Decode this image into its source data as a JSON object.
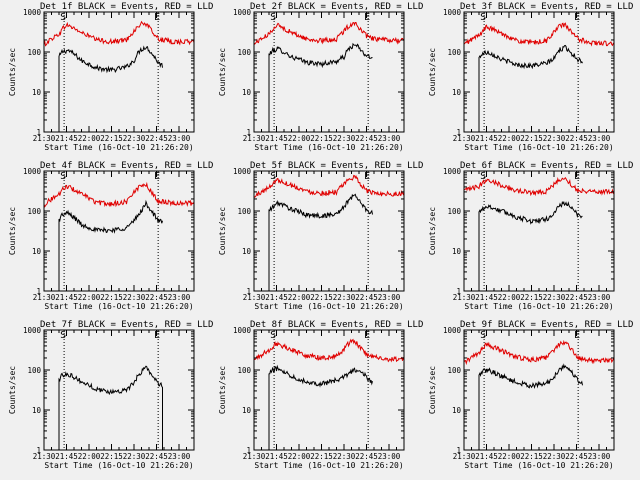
{
  "chart_data": {
    "type": "line",
    "xlabel": "Start Time (16-Oct-10 21:26:20)",
    "ylabel": "Counts/sec",
    "x_ticks": [
      "21:30",
      "21:45",
      "22:00",
      "22:15",
      "22:30",
      "22:45",
      "23:00"
    ],
    "x_tick_minutes": [
      0,
      15,
      30,
      45,
      60,
      75,
      90
    ],
    "x_range_minutes": [
      0,
      100
    ],
    "y_scale": "log",
    "y_range": [
      1,
      1000
    ],
    "y_ticks": [
      "1",
      "10",
      "100",
      "1000"
    ],
    "y_tick_values": [
      1,
      10,
      100,
      1000
    ],
    "grid": false,
    "colors": {
      "events": "#000000",
      "lld": "#e00000",
      "background": "#f0f0f0"
    },
    "vlines_minutes": [
      13.4,
      76.1
    ],
    "markers": [
      {
        "text": "S",
        "x_minutes": 13.4
      },
      {
        "text": "E",
        "x_minutes": 76.1
      }
    ],
    "panels": [
      {
        "title": "Det 1f BLACK = Events, RED = LLD",
        "series": [
          {
            "name": "BLACK = Events",
            "x": [
              10,
              12,
              16,
              25,
              35,
              45,
              55,
              60,
              64,
              68,
              72,
              76,
              79
            ],
            "y": [
              75,
              100,
              110,
              60,
              40,
              35,
              42,
              60,
              110,
              135,
              90,
              55,
              45
            ]
          },
          {
            "name": "RED = LLD",
            "x": [
              0,
              10,
              15,
              25,
              35,
              45,
              55,
              60,
              64,
              67,
              72,
              76,
              85,
              100
            ],
            "y": [
              150,
              280,
              480,
              300,
              200,
              180,
              200,
              330,
              480,
              530,
              330,
              210,
              180,
              180
            ]
          }
        ]
      },
      {
        "title": "Det 2f BLACK = Events, RED = LLD",
        "series": [
          {
            "name": "BLACK = Events",
            "x": [
              10,
              12,
              16,
              25,
              35,
              45,
              55,
              60,
              64,
              68,
              72,
              76,
              79
            ],
            "y": [
              85,
              105,
              120,
              75,
              55,
              50,
              58,
              75,
              130,
              150,
              100,
              75,
              70
            ]
          },
          {
            "name": "RED = LLD",
            "x": [
              0,
              10,
              15,
              25,
              35,
              45,
              55,
              60,
              64,
              67,
              72,
              76,
              85,
              100
            ],
            "y": [
              160,
              270,
              480,
              300,
              210,
              190,
              210,
              330,
              480,
              540,
              320,
              230,
              200,
              190
            ]
          }
        ]
      },
      {
        "title": "Det 3f BLACK = Events, RED = LLD",
        "series": [
          {
            "name": "BLACK = Events",
            "x": [
              10,
              12,
              16,
              25,
              35,
              45,
              55,
              60,
              64,
              68,
              72,
              76,
              79
            ],
            "y": [
              70,
              90,
              100,
              65,
              48,
              45,
              52,
              68,
              115,
              130,
              90,
              65,
              58
            ]
          },
          {
            "name": "RED = LLD",
            "x": [
              0,
              10,
              15,
              25,
              35,
              45,
              55,
              60,
              64,
              67,
              72,
              76,
              85,
              100
            ],
            "y": [
              150,
              260,
              420,
              290,
              190,
              170,
              190,
              310,
              450,
              480,
              300,
              210,
              170,
              160
            ]
          }
        ]
      },
      {
        "title": "Det 4f BLACK = Events, RED = LLD",
        "series": [
          {
            "name": "BLACK = Events",
            "x": [
              10,
              12,
              16,
              25,
              35,
              45,
              55,
              60,
              64,
              68,
              72,
              76,
              79
            ],
            "y": [
              60,
              80,
              88,
              45,
              33,
              33,
              38,
              55,
              90,
              150,
              95,
              55,
              55
            ]
          },
          {
            "name": "RED = LLD",
            "x": [
              0,
              10,
              15,
              25,
              35,
              45,
              55,
              60,
              64,
              67,
              72,
              76,
              85,
              100
            ],
            "y": [
              140,
              260,
              420,
              260,
              160,
              150,
              170,
              290,
              430,
              480,
              280,
              180,
              160,
              155
            ]
          }
        ]
      },
      {
        "title": "Det 5f BLACK = Events, RED = LLD",
        "series": [
          {
            "name": "BLACK = Events",
            "x": [
              10,
              12,
              16,
              25,
              35,
              45,
              55,
              60,
              64,
              68,
              72,
              76,
              79
            ],
            "y": [
              100,
              120,
              160,
              110,
              80,
              75,
              85,
              120,
              210,
              240,
              140,
              100,
              90
            ]
          },
          {
            "name": "RED = LLD",
            "x": [
              0,
              10,
              15,
              25,
              35,
              45,
              55,
              60,
              64,
              67,
              72,
              76,
              85,
              100
            ],
            "y": [
              220,
              380,
              600,
              440,
              310,
              280,
              300,
              450,
              650,
              700,
              430,
              300,
              270,
              270
            ]
          }
        ]
      },
      {
        "title": "Det 6f BLACK = Events, RED = LLD",
        "series": [
          {
            "name": "BLACK = Events",
            "x": [
              10,
              12,
              16,
              25,
              35,
              45,
              55,
              60,
              64,
              68,
              72,
              76,
              79
            ],
            "y": [
              90,
              115,
              130,
              100,
              70,
              55,
              62,
              85,
              140,
              160,
              110,
              80,
              70
            ]
          },
          {
            "name": "RED = LLD",
            "x": [
              0,
              10,
              15,
              25,
              35,
              45,
              55,
              60,
              64,
              67,
              72,
              76,
              85,
              100
            ],
            "y": [
              320,
              410,
              620,
              440,
              320,
              290,
              310,
              450,
              620,
              650,
              440,
              330,
              310,
              300
            ]
          }
        ]
      },
      {
        "title": "Det 7f BLACK = Events, RED = LLD",
        "series": [
          {
            "name": "BLACK = Events",
            "x": [
              10,
              12,
              16,
              25,
              35,
              45,
              55,
              60,
              64,
              68,
              72,
              76,
              79
            ],
            "y": [
              55,
              75,
              80,
              50,
              33,
              28,
              32,
              45,
              85,
              115,
              75,
              45,
              40
            ]
          }
        ]
      },
      {
        "title": "Det 8f BLACK = Events, RED = LLD",
        "series": [
          {
            "name": "BLACK = Events",
            "x": [
              10,
              12,
              16,
              25,
              35,
              45,
              55,
              60,
              64,
              68,
              72,
              76,
              79
            ],
            "y": [
              75,
              100,
              110,
              70,
              50,
              45,
              55,
              65,
              90,
              100,
              85,
              60,
              50
            ]
          },
          {
            "name": "RED = LLD",
            "x": [
              0,
              10,
              15,
              25,
              35,
              45,
              55,
              60,
              64,
              67,
              72,
              76,
              85,
              100
            ],
            "y": [
              180,
              300,
              460,
              320,
              230,
              200,
              220,
              330,
              500,
              520,
              320,
              230,
              190,
              180
            ]
          }
        ]
      },
      {
        "title": "Det 9f BLACK = Events, RED = LLD",
        "series": [
          {
            "name": "BLACK = Events",
            "x": [
              10,
              12,
              16,
              25,
              35,
              45,
              55,
              60,
              64,
              68,
              72,
              76,
              79
            ],
            "y": [
              70,
              90,
              100,
              70,
              48,
              40,
              46,
              65,
              110,
              125,
              85,
              55,
              45
            ]
          },
          {
            "name": "RED = LLD",
            "x": [
              0,
              10,
              15,
              25,
              35,
              45,
              55,
              60,
              64,
              67,
              72,
              76,
              85,
              100
            ],
            "y": [
              150,
              260,
              430,
              300,
              210,
              180,
              200,
              320,
              460,
              490,
              310,
              200,
              170,
              170
            ]
          }
        ]
      }
    ]
  }
}
